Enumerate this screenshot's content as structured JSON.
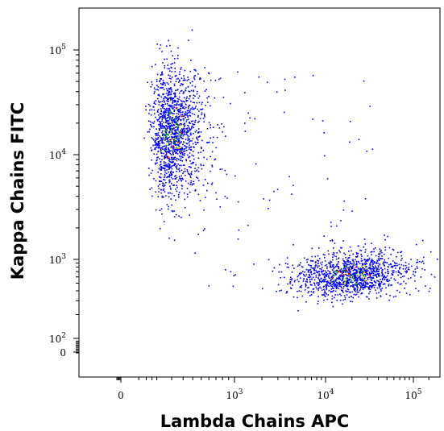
{
  "chart_data": {
    "type": "scatter",
    "subtype": "flow-cytometry density dot plot",
    "title": "",
    "xlabel": "Lambda Chains APC",
    "ylabel": "Kappa Chains FITC",
    "x_scale": "biexponential",
    "y_scale": "biexponential",
    "xlim": [
      -100,
      150000
    ],
    "ylim": [
      -20,
      150000
    ],
    "grid": false,
    "legend": "none",
    "x_ticks": [
      {
        "value": 0,
        "base": "0",
        "exp": ""
      },
      {
        "value": 1000,
        "base": "10",
        "exp": "3"
      },
      {
        "value": 10000,
        "base": "10",
        "exp": "4"
      },
      {
        "value": 100000,
        "base": "10",
        "exp": "5"
      }
    ],
    "y_ticks": [
      {
        "value": 0,
        "base": "0",
        "exp": ""
      },
      {
        "value": 100,
        "base": "10",
        "exp": "2"
      },
      {
        "value": 1000,
        "base": "10",
        "exp": "3"
      },
      {
        "value": 10000,
        "base": "10",
        "exp": "4"
      },
      {
        "value": 100000,
        "base": "10",
        "exp": "5"
      }
    ],
    "density_colors": [
      "#0000ff",
      "#00a000",
      "#e0e000",
      "#ff0000"
    ],
    "populations": [
      {
        "x_center": 210,
        "y_center": 16000,
        "x_spread_decades": 0.22,
        "y_spread_decades": 0.3,
        "events": 1500
      },
      {
        "x_center": 20000,
        "y_center": 650,
        "x_spread_decades": 0.32,
        "y_spread_decades": 0.14,
        "events": 1300
      }
    ]
  }
}
